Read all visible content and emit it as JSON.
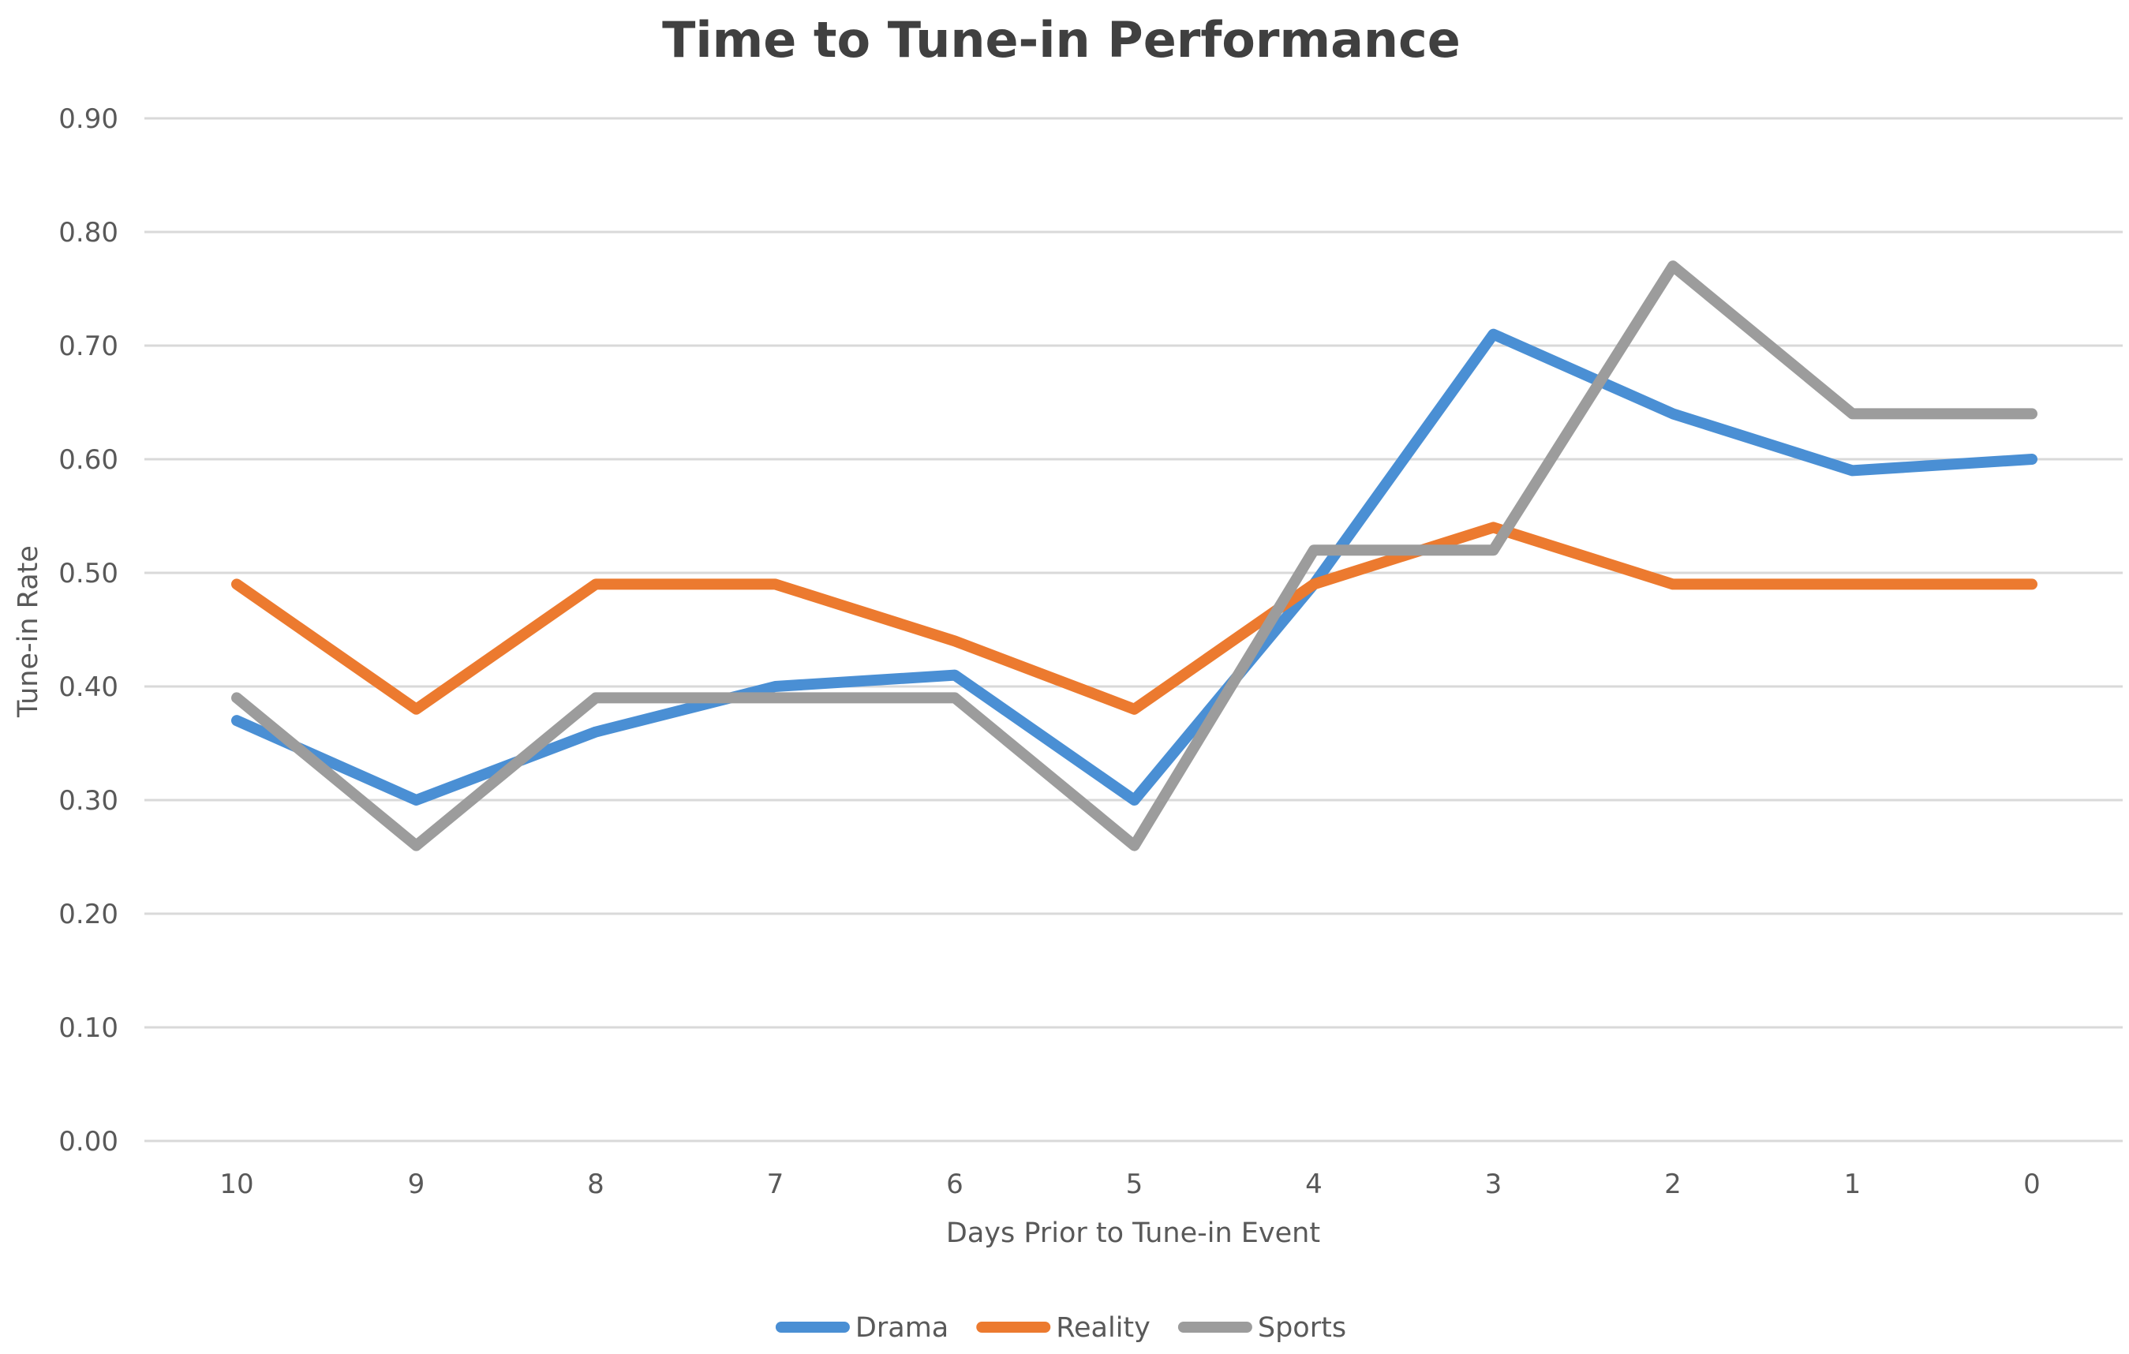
{
  "chart_data": {
    "type": "line",
    "title": "Time to Tune-in Performance",
    "xlabel": "Days Prior to Tune-in Event",
    "ylabel": "Tune-in Rate",
    "categories": [
      "10",
      "9",
      "8",
      "7",
      "6",
      "5",
      "4",
      "3",
      "2",
      "1",
      "0"
    ],
    "ylim": [
      0,
      0.9
    ],
    "ytick_step": 0.1,
    "ytick_labels": [
      "0.00",
      "0.10",
      "0.20",
      "0.30",
      "0.40",
      "0.50",
      "0.60",
      "0.70",
      "0.80",
      "0.90"
    ],
    "grid": true,
    "legend_position": "bottom",
    "series": [
      {
        "name": "Drama",
        "color": "#4a8fd4",
        "values": [
          0.37,
          0.3,
          0.36,
          0.4,
          0.41,
          0.3,
          0.49,
          0.71,
          0.64,
          0.59,
          0.6
        ]
      },
      {
        "name": "Reality",
        "color": "#ec7a2f",
        "values": [
          0.49,
          0.38,
          0.49,
          0.49,
          0.44,
          0.38,
          0.49,
          0.54,
          0.49,
          0.49,
          0.49
        ]
      },
      {
        "name": "Sports",
        "color": "#9c9c9c",
        "values": [
          0.39,
          0.26,
          0.39,
          0.39,
          0.39,
          0.26,
          0.52,
          0.52,
          0.77,
          0.64,
          0.64
        ]
      }
    ]
  }
}
